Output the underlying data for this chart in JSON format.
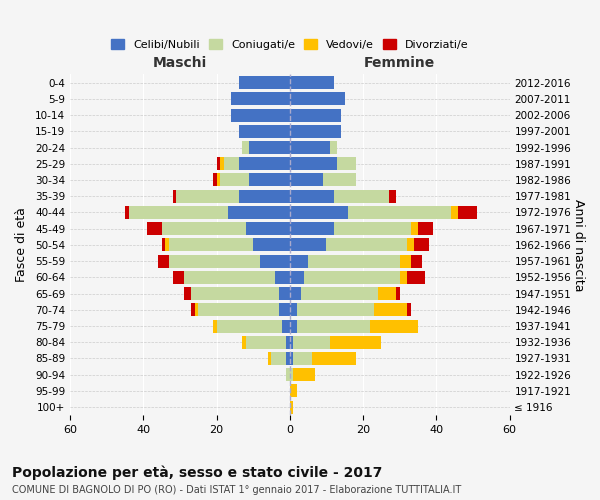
{
  "age_groups": [
    "100+",
    "95-99",
    "90-94",
    "85-89",
    "80-84",
    "75-79",
    "70-74",
    "65-69",
    "60-64",
    "55-59",
    "50-54",
    "45-49",
    "40-44",
    "35-39",
    "30-34",
    "25-29",
    "20-24",
    "15-19",
    "10-14",
    "5-9",
    "0-4"
  ],
  "birth_years": [
    "≤ 1916",
    "1917-1921",
    "1922-1926",
    "1927-1931",
    "1932-1936",
    "1937-1941",
    "1942-1946",
    "1947-1951",
    "1952-1956",
    "1957-1961",
    "1962-1966",
    "1967-1971",
    "1972-1976",
    "1977-1981",
    "1982-1986",
    "1987-1991",
    "1992-1996",
    "1997-2001",
    "2002-2006",
    "2007-2011",
    "2012-2016"
  ],
  "maschi": {
    "celibe": [
      0,
      0,
      0,
      1,
      1,
      2,
      3,
      3,
      4,
      8,
      10,
      12,
      17,
      14,
      11,
      14,
      11,
      14,
      16,
      16,
      14
    ],
    "coniugato": [
      0,
      0,
      1,
      4,
      11,
      18,
      22,
      24,
      25,
      25,
      23,
      23,
      27,
      17,
      8,
      4,
      2,
      0,
      0,
      0,
      0
    ],
    "vedovo": [
      0,
      0,
      0,
      1,
      1,
      1,
      1,
      0,
      0,
      0,
      1,
      0,
      0,
      0,
      1,
      1,
      0,
      0,
      0,
      0,
      0
    ],
    "divorziato": [
      0,
      0,
      0,
      0,
      0,
      0,
      1,
      2,
      3,
      3,
      1,
      4,
      1,
      1,
      1,
      1,
      0,
      0,
      0,
      0,
      0
    ]
  },
  "femmine": {
    "nubile": [
      0,
      0,
      0,
      1,
      1,
      2,
      2,
      3,
      4,
      5,
      10,
      12,
      16,
      12,
      9,
      13,
      11,
      14,
      14,
      15,
      12
    ],
    "coniugata": [
      0,
      0,
      1,
      5,
      10,
      20,
      21,
      21,
      26,
      25,
      22,
      21,
      28,
      15,
      9,
      5,
      2,
      0,
      0,
      0,
      0
    ],
    "vedova": [
      1,
      2,
      6,
      12,
      14,
      13,
      9,
      5,
      2,
      3,
      2,
      2,
      2,
      0,
      0,
      0,
      0,
      0,
      0,
      0,
      0
    ],
    "divorziata": [
      0,
      0,
      0,
      0,
      0,
      0,
      1,
      1,
      5,
      3,
      4,
      4,
      5,
      2,
      0,
      0,
      0,
      0,
      0,
      0,
      0
    ]
  },
  "colors": {
    "celibe": "#4472c4",
    "coniugato": "#c5d9a0",
    "vedovo": "#ffc000",
    "divorziato": "#cc0000"
  },
  "xlim": 60,
  "title": "Popolazione per età, sesso e stato civile - 2017",
  "subtitle": "COMUNE DI BAGNOLO DI PO (RO) - Dati ISTAT 1° gennaio 2017 - Elaborazione TUTTITALIA.IT",
  "ylabel_left": "Fasce di età",
  "ylabel_right": "Anni di nascita",
  "xlabel_left": "Maschi",
  "xlabel_right": "Femmine",
  "bg_color": "#f5f5f5",
  "plot_bg": "#ffffff"
}
